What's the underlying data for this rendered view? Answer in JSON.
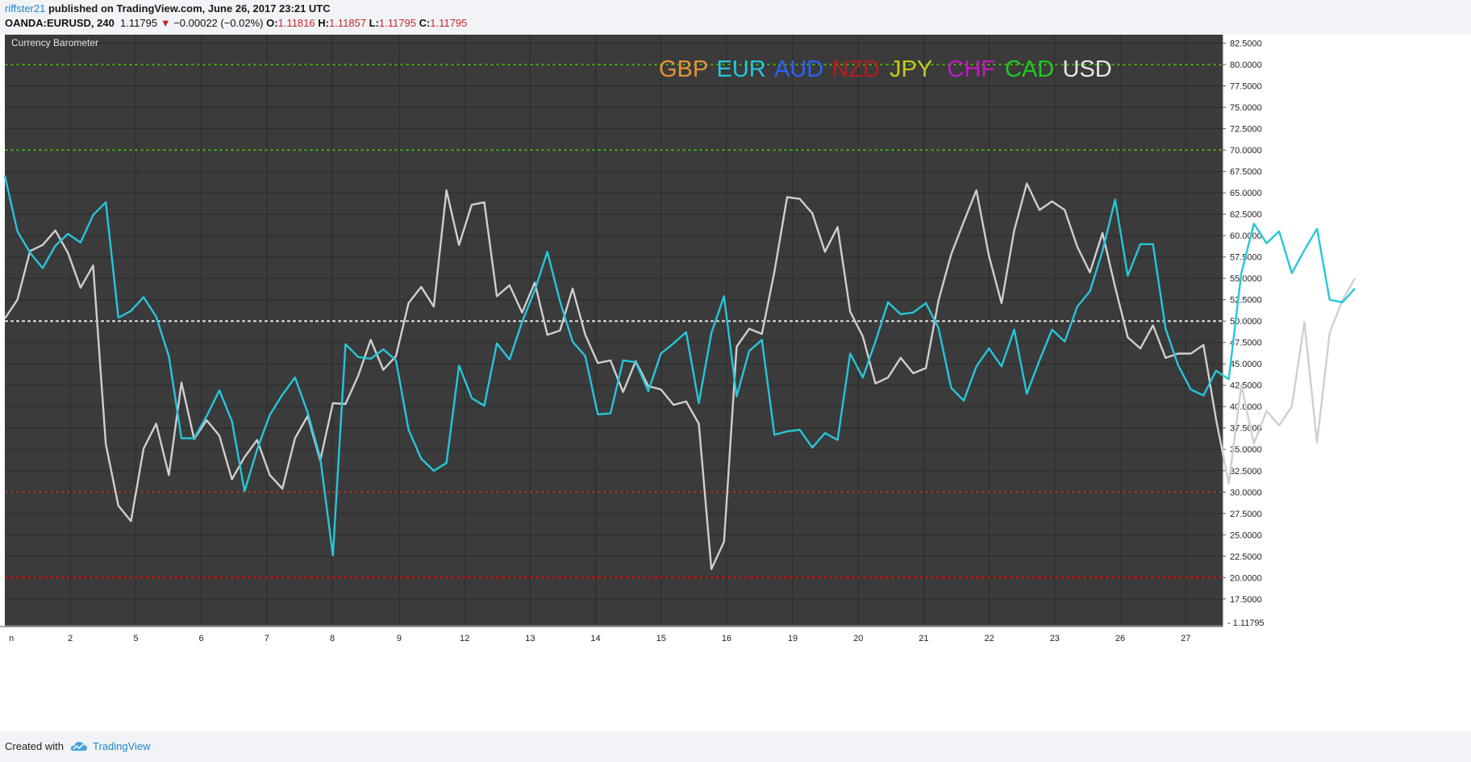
{
  "header": {
    "author": "riffster21",
    "published": "published on TradingView.com, June 26, 2017 23:21 UTC",
    "symbol": "OANDA:EURUSD, 240",
    "price": "1.11795",
    "change": "−0.00022 (−0.02%)",
    "o_label": "O:",
    "o_value": "1.11816",
    "h_label": "H:",
    "h_value": "1.11857",
    "l_label": "L:",
    "l_value": "1.11795",
    "c_label": "C:",
    "c_value": "1.11795"
  },
  "footer": {
    "created_with": "Created with",
    "brand": "TradingView"
  },
  "colors": {
    "eur": "#26c6da",
    "usd": "#cfcfcf",
    "panel": "#3b3b3b",
    "grid": "#2a2a2a"
  },
  "chart_data": {
    "type": "line",
    "title": "Currency Barometer",
    "ylim": [
      15.5,
      83.5
    ],
    "grid": true,
    "y_ticks": [
      "82.5000",
      "80.0000",
      "77.5000",
      "75.0000",
      "72.5000",
      "70.0000",
      "67.5000",
      "65.0000",
      "62.5000",
      "60.0000",
      "57.5000",
      "55.0000",
      "52.5000",
      "50.0000",
      "47.5000",
      "45.0000",
      "42.5000",
      "40.0000",
      "37.5000",
      "35.0000",
      "32.5000",
      "30.0000",
      "27.5000",
      "25.0000",
      "22.5000",
      "20.0000",
      "17.5000"
    ],
    "price_label": "1.11795",
    "x_tick_labels": [
      "n",
      "2",
      "5",
      "6",
      "7",
      "8",
      "9",
      "12",
      "13",
      "14",
      "15",
      "16",
      "19",
      "20",
      "21",
      "22",
      "23",
      "26",
      "27"
    ],
    "legend": [
      {
        "label": "GBP",
        "color": "#e8923a"
      },
      {
        "label": "EUR",
        "color": "#26c6da"
      },
      {
        "label": "AUD",
        "color": "#2962ff"
      },
      {
        "label": "NZD",
        "color": "#b71c1c"
      },
      {
        "label": "JPY",
        "color": "#c8c81e"
      },
      {
        "label": "CHF",
        "color": "#c218c2"
      },
      {
        "label": "CAD",
        "color": "#22c822"
      },
      {
        "label": "USD",
        "color": "#e6e6e6"
      }
    ],
    "reference_lines": [
      {
        "y": 80,
        "color": "#4a9a1a"
      },
      {
        "y": 70,
        "color": "#4a9a1a"
      },
      {
        "y": 50,
        "color": "#e0e0e0"
      },
      {
        "y": 30,
        "color": "#8a3a2a"
      },
      {
        "y": 20,
        "color": "#d01010"
      }
    ],
    "series": [
      {
        "name": "EUR",
        "color": "#26c6da",
        "values": [
          67,
          60.5,
          58,
          56.2,
          58.8,
          60.2,
          59.2,
          62.4,
          63.9,
          50.4,
          51.2,
          52.8,
          50.5,
          45.9,
          36.3,
          36.3,
          38.9,
          41.9,
          38.3,
          30.1,
          35,
          39,
          41.4,
          43.4,
          39.3,
          34,
          22.6,
          47.3,
          45.8,
          45.6,
          46.7,
          45.4,
          37.3,
          33.9,
          32.5,
          33.4,
          44.8,
          41,
          40.1,
          47.4,
          45.5,
          49.9,
          53.6,
          58.1,
          52.3,
          47.6,
          45.9,
          39.1,
          39.2,
          45.4,
          45.2,
          41.8,
          46.2,
          47.4,
          48.7,
          40.4,
          48.6,
          52.9,
          41.2,
          46.5,
          47.8,
          36.7,
          37.1,
          37.3,
          35.2,
          36.9,
          36.1,
          46.2,
          43.4,
          47.6,
          52.2,
          50.8,
          51,
          52.1,
          49.2,
          42.2,
          40.7,
          44.7,
          46.8,
          44.7,
          49,
          41.5,
          45.4,
          49,
          47.6,
          51.7,
          53.5,
          58.2,
          64.2,
          55.3,
          59,
          59,
          49.1,
          44.8,
          42,
          41.3,
          44.2,
          43.2,
          55.6,
          61.4,
          59.1,
          60.5,
          55.6,
          58.3,
          60.8,
          52.5,
          52.2,
          53.8
        ]
      },
      {
        "name": "USD",
        "color": "#cfcfcf",
        "values": [
          50.3,
          52.5,
          58.2,
          58.9,
          60.6,
          58,
          53.9,
          56.5,
          35.6,
          28.4,
          26.6,
          35.1,
          38,
          32,
          42.8,
          36.2,
          38.4,
          36.6,
          31.5,
          34.1,
          36.1,
          32,
          30.4,
          36.3,
          38.9,
          33.7,
          40.4,
          40.3,
          43.6,
          47.8,
          44.3,
          45.9,
          52.1,
          54,
          51.7,
          65.3,
          58.9,
          63.6,
          63.9,
          52.9,
          54.2,
          51,
          54.5,
          48.4,
          48.9,
          53.8,
          48.4,
          45.1,
          45.4,
          41.7,
          45.3,
          42.4,
          42,
          40.2,
          40.6,
          38,
          21,
          24.2,
          47,
          49.1,
          48.5,
          55.8,
          64.5,
          64.3,
          62.6,
          58.1,
          61,
          51.1,
          48.2,
          42.7,
          43.4,
          45.7,
          43.9,
          44.5,
          52.4,
          57.8,
          61.6,
          65.3,
          57.6,
          52.1,
          60.6,
          66.1,
          63,
          64,
          63,
          58.7,
          55.7,
          60.3,
          54,
          48.1,
          46.8,
          49.5,
          45.7,
          46.2,
          46.2,
          47.2,
          38.5,
          31,
          42.5,
          35.7,
          39.5,
          37.8,
          40,
          49.9,
          35.8,
          48.6,
          52.4,
          55
        ]
      }
    ]
  }
}
